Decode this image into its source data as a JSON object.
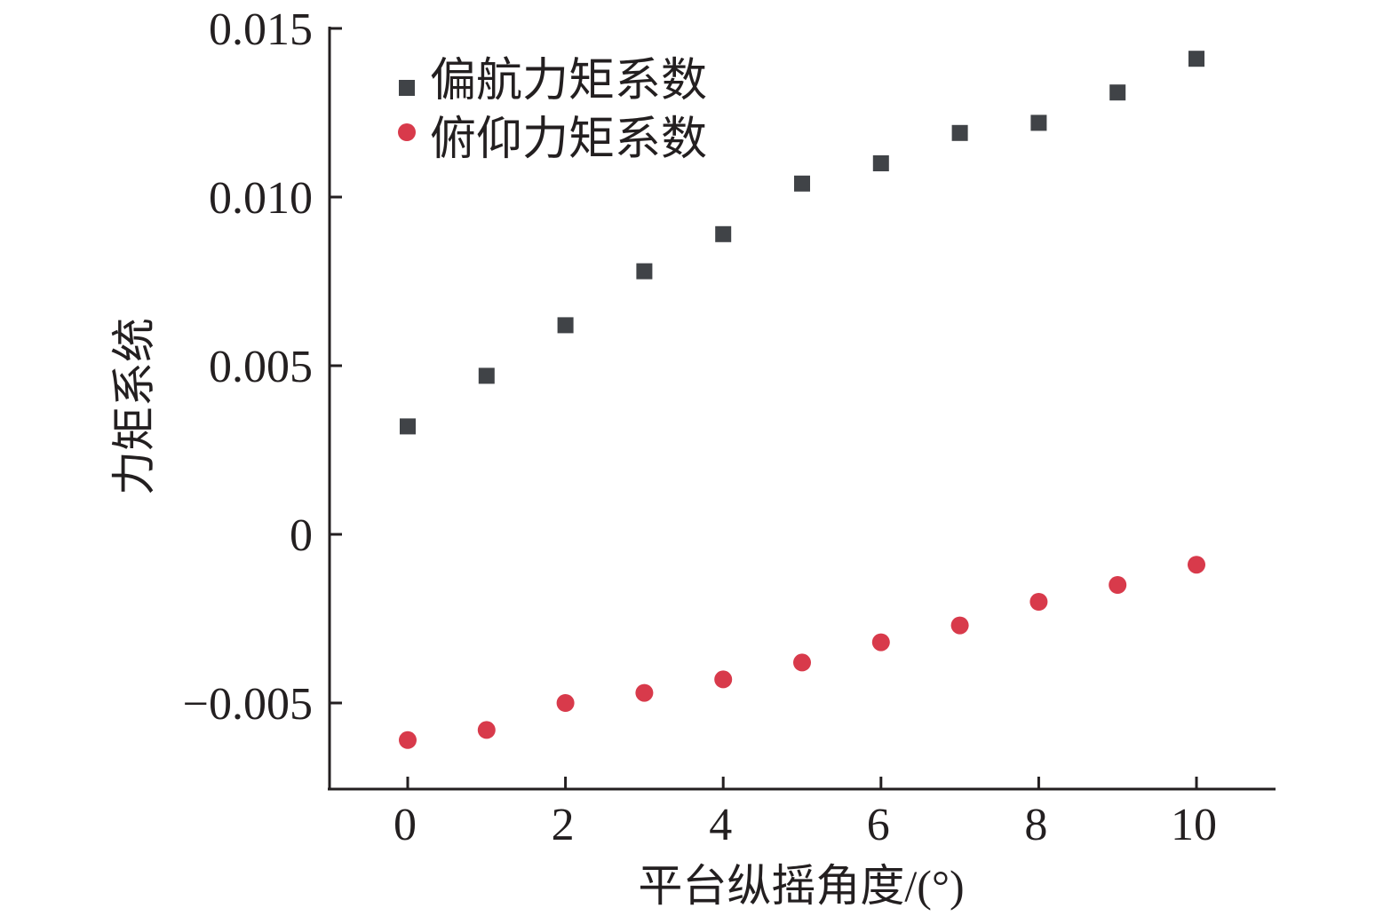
{
  "chart_data": {
    "type": "scatter",
    "title": "",
    "xlabel": "平台纵摇角度/(°)",
    "ylabel": "力矩系统",
    "x": [
      0,
      1,
      2,
      3,
      4,
      5,
      6,
      7,
      8,
      9,
      10
    ],
    "xlim": [
      -1,
      11
    ],
    "ylim": [
      -0.0075,
      0.015
    ],
    "x_ticks": [
      0,
      2,
      4,
      6,
      8,
      10
    ],
    "x_tick_labels": [
      "0",
      "2",
      "4",
      "6",
      "8",
      "10"
    ],
    "y_ticks": [
      -0.005,
      0,
      0.005,
      0.01,
      0.015
    ],
    "y_tick_labels": [
      "−0.005",
      "0",
      "0.005",
      "0.010",
      "0.015"
    ],
    "grid": false,
    "legend_position": "top-left",
    "series": [
      {
        "name": "偏航力矩系数",
        "marker": "square",
        "color": "#404347",
        "values": [
          0.0032,
          0.0047,
          0.0062,
          0.0078,
          0.0089,
          0.0104,
          0.011,
          0.0119,
          0.0122,
          0.0131,
          0.0141
        ]
      },
      {
        "name": "俯仰力矩系数",
        "marker": "circle",
        "color": "#d83a4b",
        "values": [
          -0.0061,
          -0.0058,
          -0.005,
          -0.0047,
          -0.0043,
          -0.0038,
          -0.0032,
          -0.0027,
          -0.002,
          -0.0015,
          -0.0009
        ]
      }
    ]
  }
}
